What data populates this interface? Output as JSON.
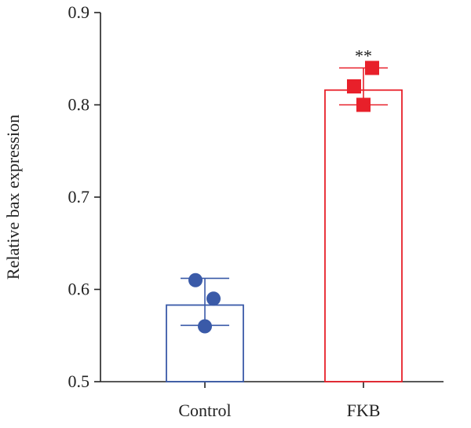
{
  "chart_data": {
    "type": "bar",
    "title": "",
    "xlabel": "",
    "ylabel": "Relative bax expression",
    "ylim": [
      0.5,
      0.9
    ],
    "yticks": [
      "0.5",
      "0.6",
      "0.7",
      "0.8",
      "0.9"
    ],
    "grid": false,
    "categories": [
      "Control",
      "FKB"
    ],
    "values": [
      0.583,
      0.816
    ],
    "error_upper": [
      0.612,
      0.84
    ],
    "error_lower": [
      0.561,
      0.8
    ],
    "points": [
      [
        0.61,
        0.59,
        0.56
      ],
      [
        0.82,
        0.84,
        0.8
      ]
    ],
    "colors": [
      "#3a5aa8",
      "#e8202a"
    ],
    "markers": [
      "circle",
      "square"
    ],
    "annotations": [
      "",
      "**"
    ]
  }
}
